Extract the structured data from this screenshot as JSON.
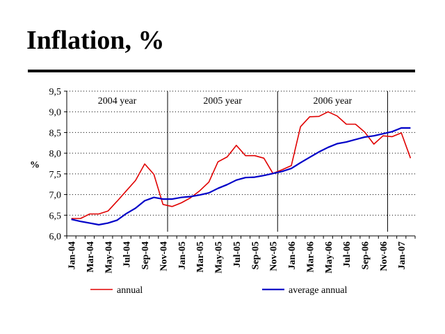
{
  "slide": {
    "title": "Inflation, %"
  },
  "chart_data": {
    "type": "line",
    "title": "",
    "xlabel": "",
    "ylabel": "%",
    "ylim": [
      6.0,
      9.5
    ],
    "y_ticks": [
      "6,0",
      "6,5",
      "7,0",
      "7,5",
      "8,0",
      "8,5",
      "9,0",
      "9,5"
    ],
    "y_tick_values": [
      6.0,
      6.5,
      7.0,
      7.5,
      8.0,
      8.5,
      9.0,
      9.5
    ],
    "x": [
      "Jan-04",
      "Feb-04",
      "Mar-04",
      "Apr-04",
      "May-04",
      "Jun-04",
      "Jul-04",
      "Aug-04",
      "Sep-04",
      "Oct-04",
      "Nov-04",
      "Dec-04",
      "Jan-05",
      "Feb-05",
      "Mar-05",
      "Apr-05",
      "May-05",
      "Jun-05",
      "Jul-05",
      "Aug-05",
      "Sep-05",
      "Oct-05",
      "Nov-05",
      "Dec-05",
      "Jan-06",
      "Feb-06",
      "Mar-06",
      "Apr-06",
      "May-06",
      "Jun-06",
      "Jul-06",
      "Aug-06",
      "Sep-06",
      "Oct-06",
      "Nov-06",
      "Dec-06",
      "Jan-07",
      "Feb-07"
    ],
    "x_tick_labels": [
      "Jan-04",
      "Mar-04",
      "May-04",
      "Jul-04",
      "Sep-04",
      "Nov-04",
      "Jan-05",
      "Mar-05",
      "May-05",
      "Jul-05",
      "Sep-05",
      "Nov-05",
      "Jan-06",
      "Mar-06",
      "May-06",
      "Jul-06",
      "Sep-06",
      "Nov-06",
      "Jan-07"
    ],
    "series": [
      {
        "name": "annual",
        "color": "#e00000",
        "values": [
          6.42,
          6.42,
          6.53,
          6.53,
          6.6,
          6.84,
          7.09,
          7.34,
          7.74,
          7.49,
          6.76,
          6.71,
          6.8,
          6.92,
          7.09,
          7.3,
          7.79,
          7.91,
          8.19,
          7.94,
          7.94,
          7.88,
          7.51,
          7.6,
          7.7,
          8.64,
          8.88,
          8.89,
          9.0,
          8.9,
          8.7,
          8.7,
          8.51,
          8.22,
          8.42,
          8.4,
          8.49,
          7.88
        ]
      },
      {
        "name": "average annual",
        "color": "#0000c8",
        "values": [
          6.4,
          6.35,
          6.31,
          6.27,
          6.31,
          6.38,
          6.54,
          6.67,
          6.85,
          6.93,
          6.89,
          6.89,
          6.93,
          6.95,
          6.99,
          7.04,
          7.15,
          7.24,
          7.35,
          7.41,
          7.42,
          7.46,
          7.51,
          7.56,
          7.63,
          7.77,
          7.9,
          8.03,
          8.14,
          8.23,
          8.27,
          8.33,
          8.39,
          8.42,
          8.47,
          8.52,
          8.61,
          8.61
        ]
      }
    ],
    "year_dividers_after": [
      "Nov-04",
      "Nov-05",
      "Nov-06"
    ],
    "period_labels": [
      "2004 year",
      "2005 year",
      "2006 year"
    ],
    "grid": "horizontal dotted",
    "legend": "bottom"
  }
}
